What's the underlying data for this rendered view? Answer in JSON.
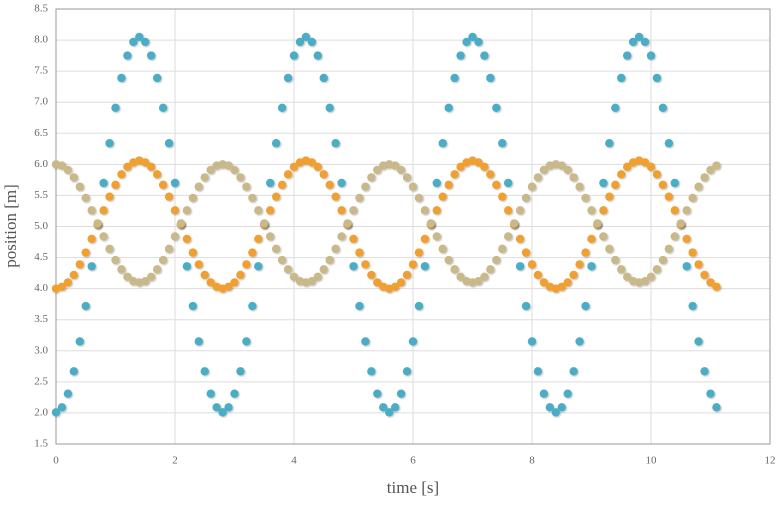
{
  "chart_data": {
    "type": "scatter",
    "x_label": "time [s]",
    "y_label": "position [m]",
    "xlim": [
      0,
      12
    ],
    "xticks": [
      0,
      2,
      4,
      6,
      8,
      10,
      12
    ],
    "ylim": [
      1.5,
      8.5
    ],
    "yticks": [
      1.5,
      {
        "value": 2,
        "label": "2.0"
      },
      2.5,
      {
        "value": 3,
        "label": "3.0"
      },
      3.5,
      {
        "value": 4,
        "label": "4.0"
      },
      4.5,
      {
        "value": 5,
        "label": "5.0"
      },
      5.5,
      {
        "value": 6,
        "label": "6.0"
      },
      6.5,
      {
        "value": 7,
        "label": "7.0"
      },
      7.5,
      {
        "value": 8,
        "label": "8.0"
      },
      8.5
    ],
    "grid": true,
    "x": [
      0,
      0.1,
      0.2,
      0.3,
      0.4,
      0.5,
      0.6,
      0.7,
      0.8,
      0.9,
      1,
      1.1,
      1.2,
      1.3,
      1.4,
      1.5,
      1.6,
      1.7,
      1.8,
      1.9,
      2,
      2.1,
      2.2,
      2.3,
      2.4,
      2.5,
      2.6,
      2.7,
      2.8,
      2.9,
      3,
      3.1,
      3.2,
      3.3,
      3.4,
      3.5,
      3.6,
      3.7,
      3.8,
      3.9,
      4,
      4.1,
      4.2,
      4.3,
      4.4,
      4.5,
      4.6,
      4.7,
      4.8,
      4.9,
      5,
      5.1,
      5.2,
      5.3,
      5.4,
      5.5,
      5.6,
      5.7,
      5.8,
      5.9,
      6,
      6.1,
      6.2,
      6.3,
      6.4,
      6.5,
      6.6,
      6.7,
      6.8,
      6.9,
      7,
      7.1,
      7.2,
      7.3,
      7.4,
      7.5,
      7.6,
      7.7,
      7.8,
      7.9,
      8,
      8.1,
      8.2,
      8.3,
      8.4,
      8.5,
      8.6,
      8.7,
      8.8,
      8.9,
      9,
      9.1,
      9.2,
      9.3,
      9.4,
      9.5,
      9.6,
      9.7,
      9.8,
      9.9,
      10,
      10.1,
      10.2,
      10.3,
      10.4,
      10.5,
      10.6,
      10.7,
      10.8,
      10.9,
      11,
      11.1
    ],
    "series": [
      {
        "color": "#4bacc6",
        "values": [
          2.01,
          2.09,
          2.31,
          2.67,
          3.15,
          3.72,
          4.36,
          5.03,
          5.7,
          6.34,
          6.91,
          7.39,
          7.75,
          7.97,
          8.05,
          7.97,
          7.75,
          7.39,
          6.91,
          6.34,
          5.7,
          5.03,
          4.36,
          3.72,
          3.15,
          2.67,
          2.31,
          2.09,
          2.01,
          2.09,
          2.31,
          2.67,
          3.15,
          3.72,
          4.36,
          5.03,
          5.7,
          6.34,
          6.91,
          7.39,
          7.75,
          7.97,
          8.05,
          7.97,
          7.75,
          7.39,
          6.91,
          6.34,
          5.7,
          5.03,
          4.36,
          3.72,
          3.15,
          2.67,
          2.31,
          2.09,
          2.01,
          2.09,
          2.31,
          2.67,
          3.15,
          3.72,
          4.36,
          5.03,
          5.7,
          6.34,
          6.91,
          7.39,
          7.75,
          7.97,
          8.05,
          7.97,
          7.75,
          7.39,
          6.91,
          6.34,
          5.7,
          5.03,
          4.36,
          3.72,
          3.15,
          2.67,
          2.31,
          2.09,
          2.01,
          2.09,
          2.31,
          2.67,
          3.15,
          3.72,
          4.36,
          5.03,
          5.7,
          6.34,
          6.91,
          7.39,
          7.75,
          7.97,
          8.05,
          7.97,
          7.75,
          7.39,
          6.91,
          6.34,
          5.7,
          5.03,
          4.36,
          3.72,
          3.15,
          2.67,
          2.31,
          2.09
        ]
      },
      {
        "color": "#f0a030",
        "values": [
          4,
          4.03,
          4.1,
          4.22,
          4.39,
          4.58,
          4.8,
          5.03,
          5.26,
          5.48,
          5.67,
          5.84,
          5.96,
          6.03,
          6.06,
          6.03,
          5.96,
          5.84,
          5.67,
          5.48,
          5.26,
          5.03,
          4.8,
          4.58,
          4.39,
          4.22,
          4.1,
          4.03,
          4,
          4.03,
          4.1,
          4.22,
          4.39,
          4.58,
          4.8,
          5.03,
          5.26,
          5.48,
          5.67,
          5.84,
          5.96,
          6.03,
          6.06,
          6.03,
          5.96,
          5.84,
          5.67,
          5.48,
          5.26,
          5.03,
          4.8,
          4.58,
          4.39,
          4.22,
          4.1,
          4.03,
          4,
          4.03,
          4.1,
          4.22,
          4.39,
          4.58,
          4.8,
          5.03,
          5.26,
          5.48,
          5.67,
          5.84,
          5.96,
          6.03,
          6.06,
          6.03,
          5.96,
          5.84,
          5.67,
          5.48,
          5.26,
          5.03,
          4.8,
          4.58,
          4.39,
          4.22,
          4.1,
          4.03,
          4,
          4.03,
          4.1,
          4.22,
          4.39,
          4.58,
          4.8,
          5.03,
          5.26,
          5.48,
          5.67,
          5.84,
          5.96,
          6.03,
          6.06,
          6.03,
          5.96,
          5.84,
          5.67,
          5.48,
          5.26,
          5.03,
          4.8,
          4.58,
          4.39,
          4.22,
          4.1,
          4.03
        ]
      },
      {
        "color": "#c8b88a",
        "values": [
          6,
          5.98,
          5.91,
          5.79,
          5.64,
          5.46,
          5.26,
          5.05,
          4.84,
          4.64,
          4.46,
          4.31,
          4.19,
          4.12,
          4.1,
          4.12,
          4.19,
          4.31,
          4.46,
          4.64,
          4.84,
          5.05,
          5.26,
          5.46,
          5.64,
          5.79,
          5.91,
          5.98,
          6,
          5.98,
          5.91,
          5.79,
          5.64,
          5.46,
          5.26,
          5.05,
          4.84,
          4.64,
          4.46,
          4.31,
          4.19,
          4.12,
          4.1,
          4.12,
          4.19,
          4.31,
          4.46,
          4.64,
          4.84,
          5.05,
          5.26,
          5.46,
          5.64,
          5.79,
          5.91,
          5.98,
          6,
          5.98,
          5.91,
          5.79,
          5.64,
          5.46,
          5.26,
          5.05,
          4.84,
          4.64,
          4.46,
          4.31,
          4.19,
          4.12,
          4.1,
          4.12,
          4.19,
          4.31,
          4.46,
          4.64,
          4.84,
          5.05,
          5.26,
          5.46,
          5.64,
          5.79,
          5.91,
          5.98,
          6,
          5.98,
          5.91,
          5.79,
          5.64,
          5.46,
          5.26,
          5.05,
          4.84,
          4.64,
          4.46,
          4.31,
          4.19,
          4.12,
          4.1,
          4.12,
          4.19,
          4.31,
          4.46,
          4.64,
          4.84,
          5.05,
          5.26,
          5.46,
          5.64,
          5.79,
          5.91,
          5.98
        ]
      }
    ]
  }
}
